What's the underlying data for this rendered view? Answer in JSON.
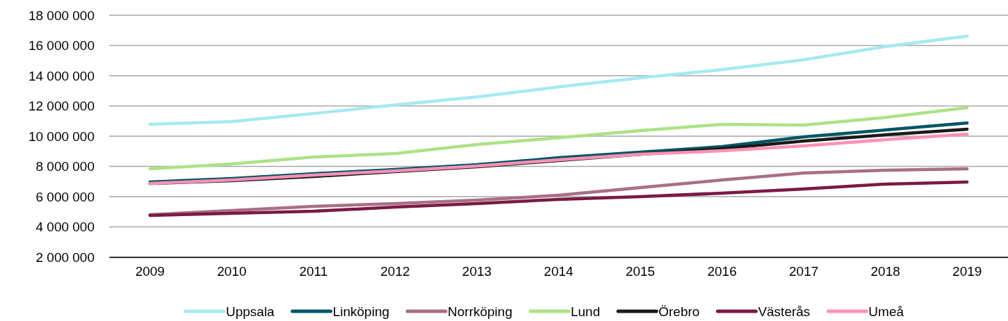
{
  "chart_data": {
    "type": "line",
    "categories": [
      "2009",
      "2010",
      "2011",
      "2012",
      "2013",
      "2014",
      "2015",
      "2016",
      "2017",
      "2018",
      "2019"
    ],
    "series": [
      {
        "name": "Uppsala",
        "color": "#a5eaf0",
        "values": [
          10780000,
          10970000,
          11500000,
          12070000,
          12600000,
          13260000,
          13860000,
          14400000,
          15060000,
          15930000,
          16620000
        ]
      },
      {
        "name": "Linköping",
        "color": "#005566",
        "values": [
          6970000,
          7200000,
          7520000,
          7790000,
          8110000,
          8570000,
          8940000,
          9310000,
          9950000,
          10410000,
          10870000
        ]
      },
      {
        "name": "Norrköping",
        "color": "#a86f86",
        "values": [
          4800000,
          5080000,
          5360000,
          5540000,
          5770000,
          6090000,
          6600000,
          7100000,
          7560000,
          7750000,
          7840000
        ]
      },
      {
        "name": "Lund",
        "color": "#ace285",
        "values": [
          7840000,
          8160000,
          8620000,
          8850000,
          9450000,
          9900000,
          10370000,
          10780000,
          10740000,
          11240000,
          11890000
        ]
      },
      {
        "name": "Örebro",
        "color": "#1a1a1a",
        "values": [
          6870000,
          7060000,
          7330000,
          7660000,
          7980000,
          8390000,
          8800000,
          9170000,
          9680000,
          10090000,
          10460000
        ]
      },
      {
        "name": "Västerås",
        "color": "#7b1a42",
        "values": [
          4760000,
          4900000,
          5030000,
          5310000,
          5540000,
          5820000,
          6000000,
          6230000,
          6510000,
          6830000,
          6970000
        ]
      },
      {
        "name": "Umeå",
        "color": "#ff91b4",
        "values": [
          6870000,
          7100000,
          7430000,
          7700000,
          8020000,
          8440000,
          8800000,
          9030000,
          9360000,
          9770000,
          10140000
        ]
      }
    ],
    "ylim": [
      2000000,
      18000000
    ],
    "yticks": [
      {
        "value": 2000000,
        "label": "2 000 000"
      },
      {
        "value": 4000000,
        "label": "4 000 000"
      },
      {
        "value": 6000000,
        "label": "6 000 000"
      },
      {
        "value": 8000000,
        "label": "8 000 000"
      },
      {
        "value": 10000000,
        "label": "10 000 000"
      },
      {
        "value": 12000000,
        "label": "12 000 000"
      },
      {
        "value": 14000000,
        "label": "14 000 000"
      },
      {
        "value": 16000000,
        "label": "16 000 000"
      },
      {
        "value": 18000000,
        "label": "18 000 000"
      }
    ],
    "grid": "y",
    "legend": "bottom",
    "marker": "none",
    "line_style": "solid"
  }
}
